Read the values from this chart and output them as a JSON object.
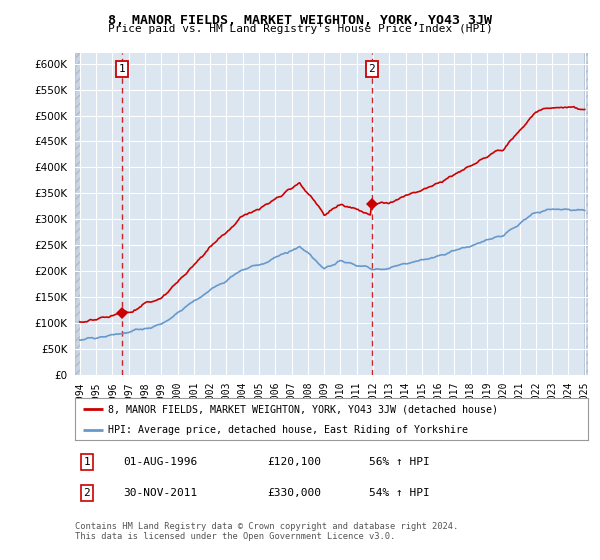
{
  "title": "8, MANOR FIELDS, MARKET WEIGHTON, YORK, YO43 3JW",
  "subtitle": "Price paid vs. HM Land Registry's House Price Index (HPI)",
  "legend_line1": "8, MANOR FIELDS, MARKET WEIGHTON, YORK, YO43 3JW (detached house)",
  "legend_line2": "HPI: Average price, detached house, East Riding of Yorkshire",
  "footnote": "Contains HM Land Registry data © Crown copyright and database right 2024.\nThis data is licensed under the Open Government Licence v3.0.",
  "annotation1_label": "1",
  "annotation1_date": "01-AUG-1996",
  "annotation1_price": "£120,100",
  "annotation1_hpi": "56% ↑ HPI",
  "annotation2_label": "2",
  "annotation2_date": "30-NOV-2011",
  "annotation2_price": "£330,000",
  "annotation2_hpi": "54% ↑ HPI",
  "red_color": "#cc0000",
  "blue_color": "#6699cc",
  "bg_color": "#dce6f1",
  "grid_color": "#ffffff",
  "ylim": [
    0,
    620000
  ],
  "yticks": [
    0,
    50000,
    100000,
    150000,
    200000,
    250000,
    300000,
    350000,
    400000,
    450000,
    500000,
    550000,
    600000
  ],
  "sale1_year": 1996.583,
  "sale1_price": 120100,
  "sale2_year": 2011.917,
  "sale2_price": 330000,
  "xmin": 1994.0,
  "xmax": 2025.0
}
